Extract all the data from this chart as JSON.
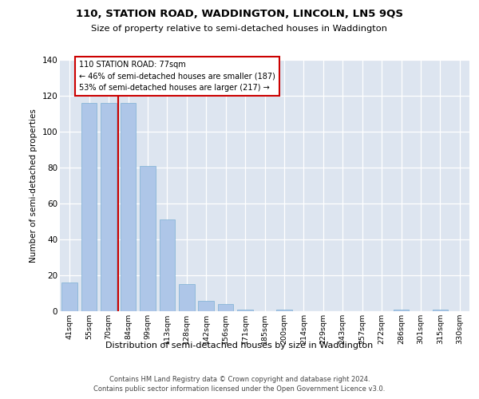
{
  "title1": "110, STATION ROAD, WADDINGTON, LINCOLN, LN5 9QS",
  "title2": "Size of property relative to semi-detached houses in Waddington",
  "xlabel": "Distribution of semi-detached houses by size in Waddington",
  "ylabel": "Number of semi-detached properties",
  "categories": [
    "41sqm",
    "55sqm",
    "70sqm",
    "84sqm",
    "99sqm",
    "113sqm",
    "128sqm",
    "142sqm",
    "156sqm",
    "171sqm",
    "185sqm",
    "200sqm",
    "214sqm",
    "229sqm",
    "243sqm",
    "257sqm",
    "272sqm",
    "286sqm",
    "301sqm",
    "315sqm",
    "330sqm"
  ],
  "values": [
    16,
    116,
    116,
    116,
    81,
    51,
    15,
    6,
    4,
    1,
    0,
    1,
    0,
    0,
    0,
    0,
    0,
    1,
    0,
    1,
    0
  ],
  "bar_color": "#aec6e8",
  "bar_edgecolor": "#7bafd4",
  "vline_x": 2.5,
  "vline_color": "#cc0000",
  "annotation_title": "110 STATION ROAD: 77sqm",
  "annotation_line1": "← 46% of semi-detached houses are smaller (187)",
  "annotation_line2": "53% of semi-detached houses are larger (217) →",
  "annotation_box_edgecolor": "#cc0000",
  "ylim": [
    0,
    140
  ],
  "yticks": [
    0,
    20,
    40,
    60,
    80,
    100,
    120,
    140
  ],
  "background_color": "#dde5f0",
  "footer1": "Contains HM Land Registry data © Crown copyright and database right 2024.",
  "footer2": "Contains public sector information licensed under the Open Government Licence v3.0."
}
